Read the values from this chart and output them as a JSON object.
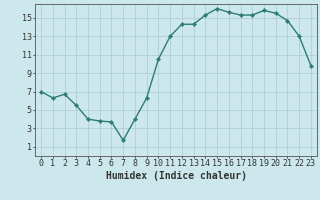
{
  "x": [
    0,
    1,
    2,
    3,
    4,
    5,
    6,
    7,
    8,
    9,
    10,
    11,
    12,
    13,
    14,
    15,
    16,
    17,
    18,
    19,
    20,
    21,
    22,
    23
  ],
  "y": [
    7.0,
    6.3,
    6.7,
    5.5,
    4.0,
    3.8,
    3.7,
    1.7,
    4.0,
    6.3,
    10.5,
    13.0,
    14.3,
    14.3,
    15.3,
    16.0,
    15.6,
    15.3,
    15.3,
    15.8,
    15.5,
    14.7,
    13.0,
    9.8
  ],
  "line_color": "#2e7d6e",
  "marker": "D",
  "marker_size": 2.2,
  "bg_color": "#cce8ec",
  "grid_color": "#b0cfd4",
  "axis_color": "#666666",
  "xlabel": "Humidex (Indice chaleur)",
  "xlim": [
    -0.5,
    23.5
  ],
  "ylim": [
    0.0,
    16.5
  ],
  "yticks": [
    1,
    3,
    5,
    7,
    9,
    11,
    13,
    15
  ],
  "xticks": [
    0,
    1,
    2,
    3,
    4,
    5,
    6,
    7,
    8,
    9,
    10,
    11,
    12,
    13,
    14,
    15,
    16,
    17,
    18,
    19,
    20,
    21,
    22,
    23
  ],
  "xlabel_fontsize": 7,
  "tick_fontsize": 6,
  "line_width": 1.0
}
